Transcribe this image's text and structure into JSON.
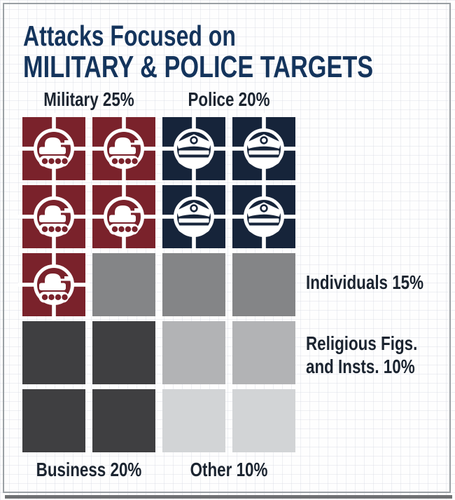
{
  "title": {
    "line1": "Attacks Focused on",
    "line2": "MILITARY & POLICE TARGETS"
  },
  "labels": {
    "military": "Military 25%",
    "police": "Police 20%",
    "individuals": "Individuals 15%",
    "religious_line1": "Religious Figs.",
    "religious_line2": "and Insts. 10%",
    "business": "Business 20%",
    "other": "Other 10%"
  },
  "colors": {
    "military": "#7a222b",
    "police": "#16243a",
    "individuals": "#848587",
    "religious": "#b2b3b5",
    "business": "#3f3f41",
    "other": "#d2d4d6",
    "title_text": "#14345c",
    "label_text": "#1b2430",
    "icon": "#ffffff",
    "frame_border": "#9aa0a4",
    "frame_shadow": "#6f7173"
  },
  "grid": {
    "columns": 4,
    "rows": 5,
    "unit_per_square_pct": 5,
    "cells": [
      "military",
      "military",
      "police",
      "police",
      "military",
      "military",
      "police",
      "police",
      "military",
      "individuals",
      "individuals",
      "individuals",
      "business",
      "business",
      "religious",
      "religious",
      "business",
      "business",
      "other",
      "other"
    ]
  },
  "chart_data": {
    "type": "waffle_pictograph",
    "title": "Attacks Focused on MILITARY & POLICE TARGETS",
    "categories": [
      "Military",
      "Police",
      "Individuals",
      "Religious Figs. and Insts.",
      "Business",
      "Other"
    ],
    "values": [
      25,
      20,
      15,
      10,
      20,
      10
    ],
    "unit": "percent",
    "squares_per_category": [
      5,
      4,
      3,
      2,
      4,
      2
    ],
    "square_value_pct": 5,
    "icons": {
      "Military": "tank-in-crosshair",
      "Police": "police-cap-in-crosshair"
    },
    "colors": {
      "Military": "#7a222b",
      "Police": "#16243a",
      "Individuals": "#848587",
      "Religious Figs. and Insts.": "#b2b3b5",
      "Business": "#3f3f41",
      "Other": "#d2d4d6"
    },
    "legend_position": "labels adjacent to square groups (top, right, bottom)"
  }
}
